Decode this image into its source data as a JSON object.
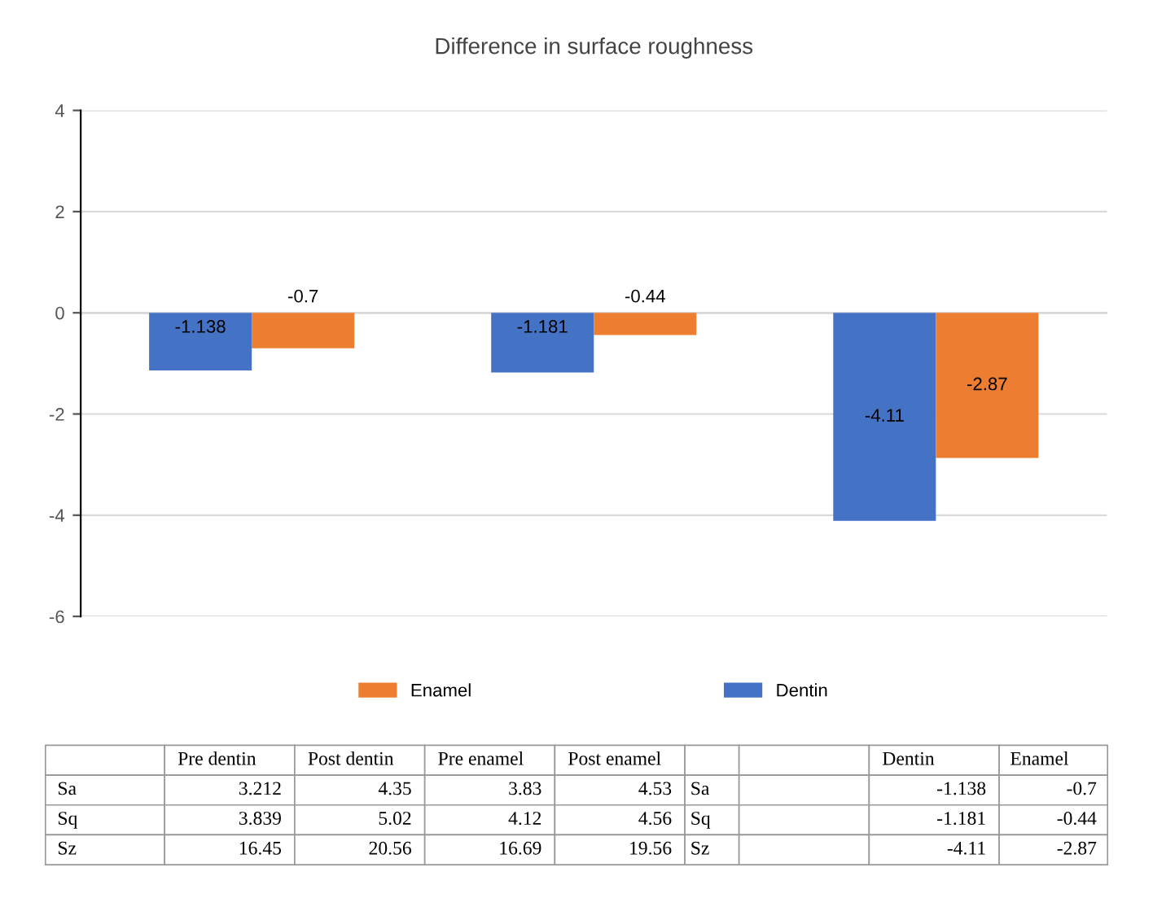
{
  "chart_data": [
    {
      "type": "bar",
      "title": "Difference in surface roughness",
      "categories": [
        null,
        null,
        null
      ],
      "series": [
        {
          "name": "Dentin",
          "color": "#4472c4",
          "values": [
            -1.138,
            -1.181,
            -4.11
          ]
        },
        {
          "name": "Enamel",
          "color": "#ed7d31",
          "values": [
            -0.7,
            -0.44,
            -2.87
          ]
        }
      ],
      "ylim": [
        -6,
        4
      ],
      "yticks": [
        -6,
        -4,
        -2,
        0,
        2,
        4
      ],
      "grid": "y",
      "legend": "bottom",
      "data_labels": true
    },
    {
      "type": "other",
      "categories": [
        null,
        "Pre dentin",
        "Post dentin",
        "Pre enamel",
        "Post enamel",
        null,
        null,
        "Dentin",
        "Enamel"
      ],
      "cell_labels": [
        [
          "Sa",
          "3.212",
          "4.35",
          "3.83",
          "4.53",
          "Sa",
          null,
          "-1.138",
          "-0.7"
        ],
        [
          "Sq",
          "3.839",
          "5.02",
          "4.12",
          "4.56",
          "Sq",
          null,
          "-1.181",
          "-0.44"
        ],
        [
          "Sz",
          "16.45",
          "20.56",
          "16.69",
          "19.56",
          "Sz",
          null,
          "-4.11",
          "-2.87"
        ]
      ]
    }
  ]
}
